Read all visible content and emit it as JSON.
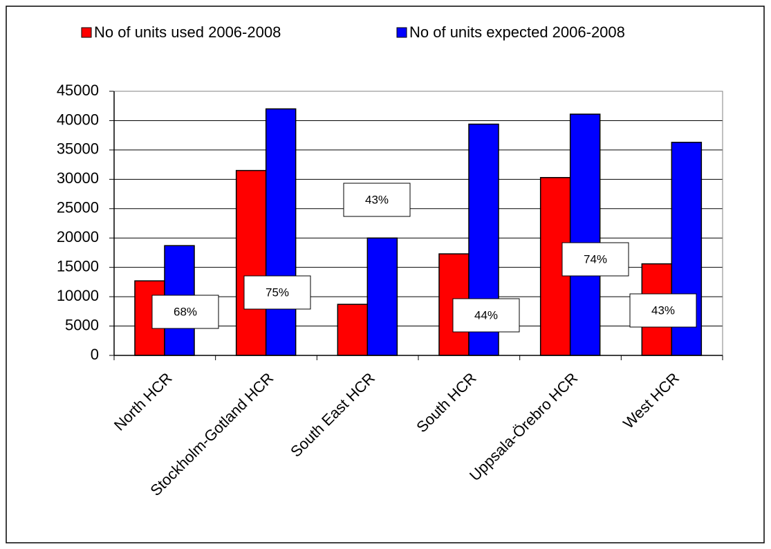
{
  "chart_data": {
    "type": "bar",
    "categories": [
      "North HCR",
      "Stockholm-Gotland HCR",
      "South East HCR",
      "South HCR",
      "Uppsala-Örebro HCR",
      "West HCR"
    ],
    "series": [
      {
        "name": "No of units used 2006-2008",
        "color": "#ff0000",
        "values": [
          12700,
          31500,
          8700,
          17300,
          30300,
          15600
        ]
      },
      {
        "name": "No of units expected 2006-2008",
        "color": "#0000ff",
        "values": [
          18700,
          42000,
          20000,
          39400,
          41100,
          36300
        ]
      }
    ],
    "annotations": [
      "68%",
      "75%",
      "43%",
      "44%",
      "74%",
      "43%"
    ],
    "ylim": [
      0,
      45000
    ],
    "yticks": [
      0,
      5000,
      10000,
      15000,
      20000,
      25000,
      30000,
      35000,
      40000,
      45000
    ],
    "grid": true,
    "legend": "top"
  }
}
